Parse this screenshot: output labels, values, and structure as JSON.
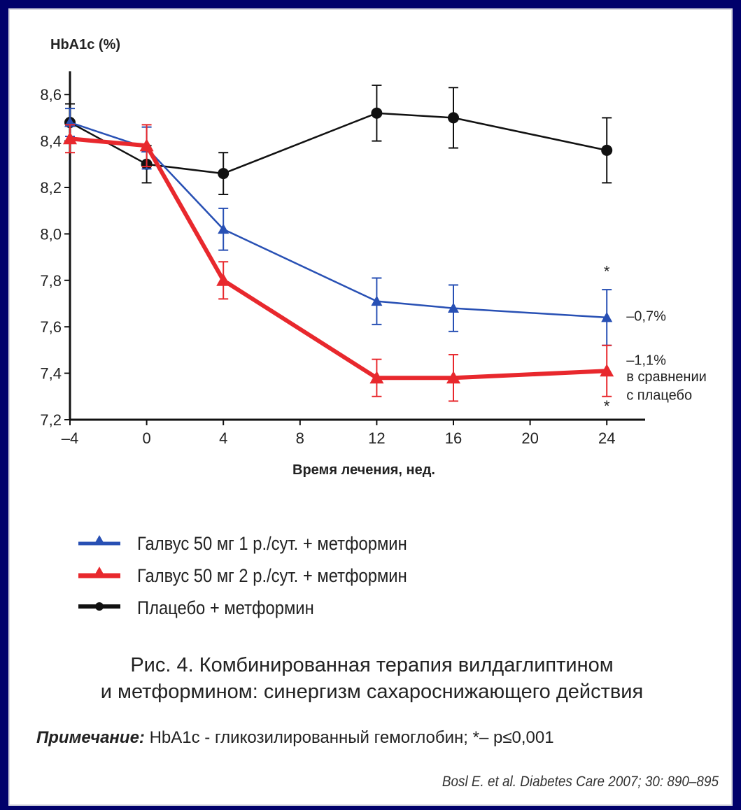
{
  "chart_data": {
    "type": "line",
    "ylabel": "HbA1c (%)",
    "xlabel": "Время лечения, нед.",
    "x_ticks": [
      -4,
      0,
      4,
      8,
      12,
      16,
      20,
      24
    ],
    "y_ticks": [
      "7,2",
      "7,4",
      "7,6",
      "7,8",
      "8,0",
      "8,2",
      "8,4",
      "8,6"
    ],
    "y_tick_values": [
      7.2,
      7.4,
      7.6,
      7.8,
      8.0,
      8.2,
      8.4,
      8.6
    ],
    "xlim": [
      -4,
      26
    ],
    "ylim": [
      7.2,
      8.7
    ],
    "series": [
      {
        "name": "Плацебо + метформин",
        "color": "#111111",
        "marker": "circle",
        "x": [
          -4,
          0,
          4,
          12,
          16,
          24
        ],
        "y": [
          8.48,
          8.3,
          8.26,
          8.52,
          8.5,
          8.36
        ],
        "err": [
          0.08,
          0.08,
          0.09,
          0.12,
          0.13,
          0.14
        ]
      },
      {
        "name": "Галвус 50 мг 1 р./сут. + метформин",
        "color": "#2850b4",
        "marker": "triangle",
        "x": [
          -4,
          0,
          4,
          12,
          16,
          24
        ],
        "y": [
          8.48,
          8.37,
          8.02,
          7.71,
          7.68,
          7.64
        ],
        "err": [
          0.06,
          0.09,
          0.09,
          0.1,
          0.1,
          0.12
        ]
      },
      {
        "name": "Галвус 50 мг 2 р./сут. + метформин",
        "color": "#e8282d",
        "marker": "triangle",
        "x": [
          -4,
          0,
          4,
          12,
          16,
          24
        ],
        "y": [
          8.41,
          8.38,
          7.8,
          7.38,
          7.38,
          7.41
        ],
        "err": [
          0.06,
          0.09,
          0.08,
          0.08,
          0.1,
          0.11
        ]
      }
    ],
    "annotations": [
      {
        "text": "*",
        "x": 24,
        "y": 7.84
      },
      {
        "text": "*",
        "x": 24,
        "y": 7.26
      },
      {
        "text": "–0,7%",
        "x": 24,
        "y": 7.65
      },
      {
        "text": "–1,1%",
        "x": 24,
        "y": 7.46
      },
      {
        "text": "в сравнении",
        "x": 24,
        "y": 7.39
      },
      {
        "text": "с плацебо",
        "x": 24,
        "y": 7.31
      }
    ]
  },
  "caption": {
    "line1": "Рис. 4. Комбинированная терапия вилдаглиптином",
    "line2": "и метформином: синергизм сахароснижающего действия"
  },
  "note": {
    "label": "Примечание:",
    "text": " HbA1c - гликозилированный гемоглобин; *– p≤0,001"
  },
  "source": "Bosl E. et al. Diabetes Care 2007; 30: 890–895"
}
